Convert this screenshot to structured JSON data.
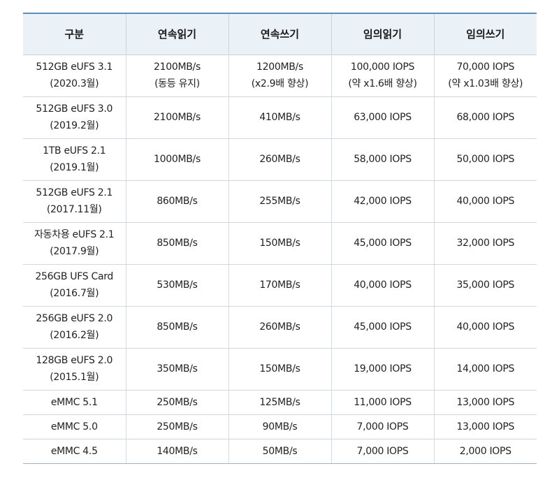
{
  "table": {
    "headers": [
      "구분",
      "연속읽기",
      "연속쓰기",
      "임의읽기",
      "임의쓰기"
    ],
    "rows": [
      [
        [
          "512GB eUFS 3.1",
          "(2020.3월)"
        ],
        [
          "2100MB/s",
          "(동등 유지)"
        ],
        [
          "1200MB/s",
          "(x2.9배 향상)"
        ],
        [
          "100,000 IOPS",
          "(약 x1.6배 향상)"
        ],
        [
          "70,000 IOPS",
          "(약 x1.03배 향상)"
        ]
      ],
      [
        [
          "512GB eUFS 3.0",
          "(2019.2월)"
        ],
        [
          "2100MB/s"
        ],
        [
          "410MB/s"
        ],
        [
          "63,000 IOPS"
        ],
        [
          "68,000 IOPS"
        ]
      ],
      [
        [
          "1TB eUFS 2.1",
          "(2019.1월)"
        ],
        [
          "1000MB/s"
        ],
        [
          "260MB/s"
        ],
        [
          "58,000 IOPS"
        ],
        [
          "50,000 IOPS"
        ]
      ],
      [
        [
          "512GB eUFS 2.1",
          "(2017.11월)"
        ],
        [
          "860MB/s"
        ],
        [
          "255MB/s"
        ],
        [
          "42,000 IOPS"
        ],
        [
          "40,000 IOPS"
        ]
      ],
      [
        [
          "자동차용 eUFS 2.1",
          "(2017.9월)"
        ],
        [
          "850MB/s"
        ],
        [
          "150MB/s"
        ],
        [
          "45,000 IOPS"
        ],
        [
          "32,000 IOPS"
        ]
      ],
      [
        [
          "256GB UFS Card",
          "(2016.7월)"
        ],
        [
          "530MB/s"
        ],
        [
          "170MB/s"
        ],
        [
          "40,000 IOPS"
        ],
        [
          "35,000 IOPS"
        ]
      ],
      [
        [
          "256GB eUFS 2.0",
          "(2016.2월)"
        ],
        [
          "850MB/s"
        ],
        [
          "260MB/s"
        ],
        [
          "45,000 IOPS"
        ],
        [
          "40,000 IOPS"
        ]
      ],
      [
        [
          "128GB eUFS 2.0",
          "(2015.1월)"
        ],
        [
          "350MB/s"
        ],
        [
          "150MB/s"
        ],
        [
          "19,000 IOPS"
        ],
        [
          "14,000 IOPS"
        ]
      ],
      [
        [
          "eMMC 5.1"
        ],
        [
          "250MB/s"
        ],
        [
          "125MB/s"
        ],
        [
          "11,000 IOPS"
        ],
        [
          "13,000 IOPS"
        ]
      ],
      [
        [
          "eMMC 5.0"
        ],
        [
          "250MB/s"
        ],
        [
          "90MB/s"
        ],
        [
          "7,000 IOPS"
        ],
        [
          "13,000 IOPS"
        ]
      ],
      [
        [
          "eMMC 4.5"
        ],
        [
          "140MB/s"
        ],
        [
          "50MB/s"
        ],
        [
          "7,000 IOPS"
        ],
        [
          "2,000 IOPS"
        ]
      ]
    ]
  },
  "colors": {
    "header_bg": "#eaf2f8",
    "header_top_border": "#5c8fb8",
    "grid_line": "#cfd7dd",
    "text": "#222222"
  }
}
